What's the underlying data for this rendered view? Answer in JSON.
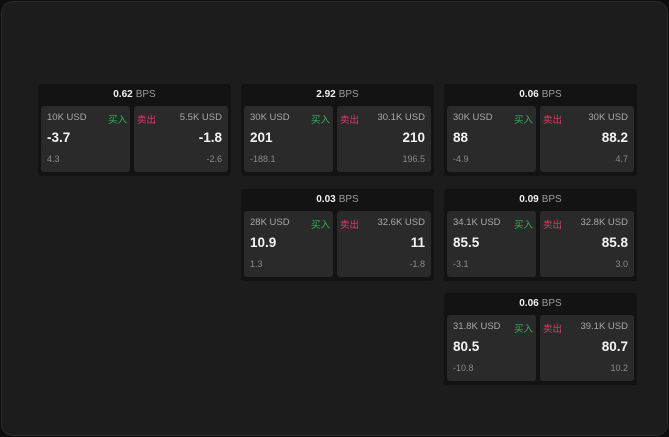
{
  "labels": {
    "unit": "BPS",
    "buy": "买入",
    "sell": "卖出"
  },
  "colors": {
    "buy": "#2fb35a",
    "sell": "#e0386a"
  },
  "cards": [
    {
      "spread": "0.62",
      "bid": {
        "size": "10K USD",
        "price": "-3.7",
        "change": "4.3"
      },
      "ask": {
        "size": "5.5K USD",
        "price": "-1.8",
        "change": "-2.6"
      }
    },
    {
      "spread": "2.92",
      "bid": {
        "size": "30K USD",
        "price": "201",
        "change": "-188.1"
      },
      "ask": {
        "size": "30.1K USD",
        "price": "210",
        "change": "196.5"
      }
    },
    {
      "spread": "0.06",
      "bid": {
        "size": "30K USD",
        "price": "88",
        "change": "-4.9"
      },
      "ask": {
        "size": "30K USD",
        "price": "88.2",
        "change": "4.7"
      }
    },
    {
      "spread": "0.03",
      "bid": {
        "size": "28K USD",
        "price": "10.9",
        "change": "1.3"
      },
      "ask": {
        "size": "32.6K USD",
        "price": "11",
        "change": "-1.8"
      }
    },
    {
      "spread": "0.09",
      "bid": {
        "size": "34.1K USD",
        "price": "85.5",
        "change": "-3.1"
      },
      "ask": {
        "size": "32.8K USD",
        "price": "85.8",
        "change": "3.0"
      }
    },
    {
      "spread": "0.06",
      "bid": {
        "size": "31.8K USD",
        "price": "80.5",
        "change": "-10.8"
      },
      "ask": {
        "size": "39.1K USD",
        "price": "80.7",
        "change": "10.2"
      }
    }
  ]
}
